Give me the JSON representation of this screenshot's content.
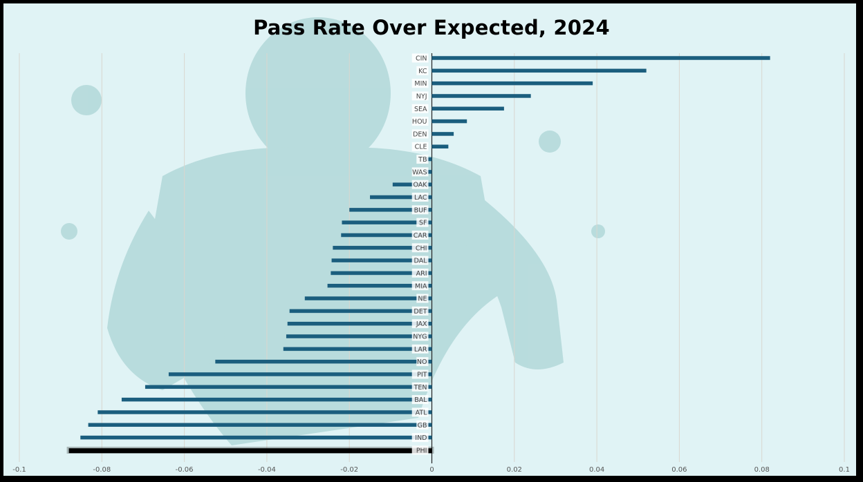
{
  "title": "Pass Rate Over Expected, 2024",
  "colors": {
    "bar": "#1b5e7e",
    "highlight": "#000000",
    "grid": "#d9d6cf",
    "background": "#e0f3f5"
  },
  "chart_data": {
    "type": "bar",
    "orientation": "horizontal",
    "title": "Pass Rate Over Expected, 2024",
    "xlim": [
      -0.1,
      0.1
    ],
    "xticks": [
      "-0.1",
      "-0.08",
      "-0.06",
      "-0.04",
      "-0.02",
      "0",
      "0.02",
      "0.04",
      "0.06",
      "0.08",
      "0.1"
    ],
    "grid": "vertical",
    "highlighted_category": "PHI",
    "categories": [
      "CIN",
      "KC",
      "MIN",
      "NYJ",
      "SEA",
      "HOU",
      "DEN",
      "CLE",
      "TB",
      "WAS",
      "OAK",
      "LAC",
      "BUF",
      "SF",
      "CAR",
      "CHI",
      "DAL",
      "ARI",
      "MIA",
      "NE",
      "DET",
      "JAX",
      "NYG",
      "LAR",
      "NO",
      "PIT",
      "TEN",
      "BAL",
      "ATL",
      "GB",
      "IND",
      "PHI"
    ],
    "values": [
      0.082,
      0.052,
      0.039,
      0.024,
      0.0175,
      0.0085,
      0.0053,
      0.004,
      -0.0015,
      -0.0015,
      -0.0095,
      -0.015,
      -0.02,
      -0.0218,
      -0.022,
      -0.024,
      -0.0243,
      -0.0245,
      -0.0253,
      -0.0308,
      -0.0345,
      -0.035,
      -0.0353,
      -0.036,
      -0.0525,
      -0.0638,
      -0.0695,
      -0.0752,
      -0.081,
      -0.0833,
      -0.0852,
      -0.088
    ]
  }
}
